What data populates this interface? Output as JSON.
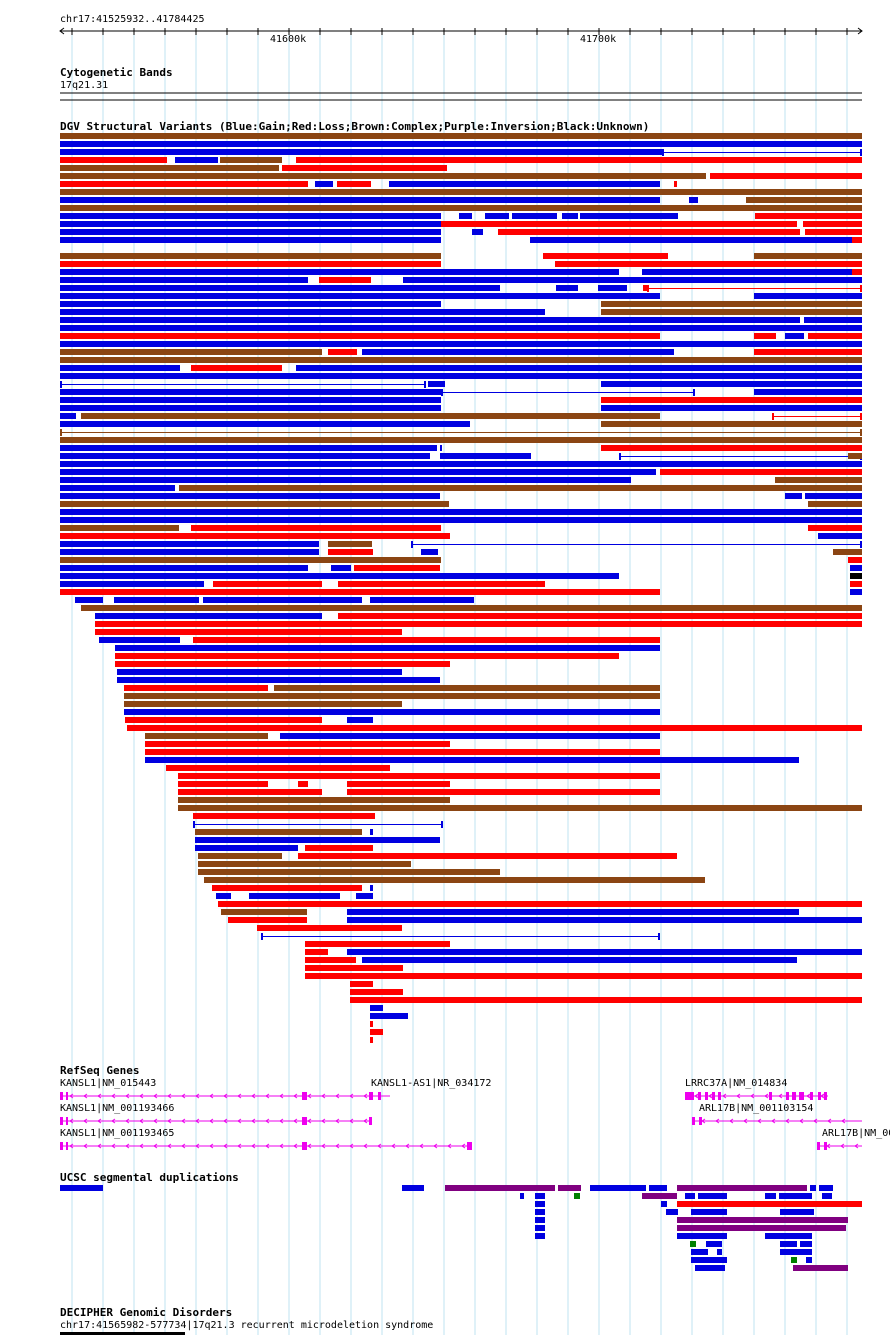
{
  "ruler": {
    "location": "chr17:41525932..41784425",
    "ticks": [
      {
        "label": "41600k",
        "pos": 41600000
      },
      {
        "label": "41700k",
        "pos": 41700000
      }
    ]
  },
  "tracks": {
    "cytoband": {
      "title": "Cytogenetic Bands",
      "band": "17q21.31"
    },
    "dgv": {
      "title": "DGV Structural Variants (Blue:Gain;Red:Loss;Brown:Complex;Purple:Inversion;Black:Unknown)",
      "colors": {
        "gain": "#0000e0",
        "loss": "#ff0000",
        "complex": "#8b4513",
        "inversion": "#800080",
        "unknown": "#000000"
      }
    },
    "refseq": {
      "title": "RefSeq Genes",
      "color": "#ee00ee",
      "genes": [
        "KANSL1|NM_015443",
        "KANSL1-AS1|NR_034172",
        "LRRC37A|NM_014834",
        "KANSL1|NM_001193466",
        "ARL17B|NM_001103154",
        "KANSL1|NM_001193465",
        "ARL17B|NM_00"
      ]
    },
    "segdup": {
      "title": "UCSC segmental duplications",
      "colors": {
        "blue": "#0000e0",
        "purple": "#800080",
        "red": "#ff0000",
        "green": "#008000"
      }
    },
    "decipher": {
      "title": "DECIPHER Genomic Disorders",
      "item": "chr17:41565982-577734|17q21.3 recurrent microdeletion syndrome"
    }
  }
}
